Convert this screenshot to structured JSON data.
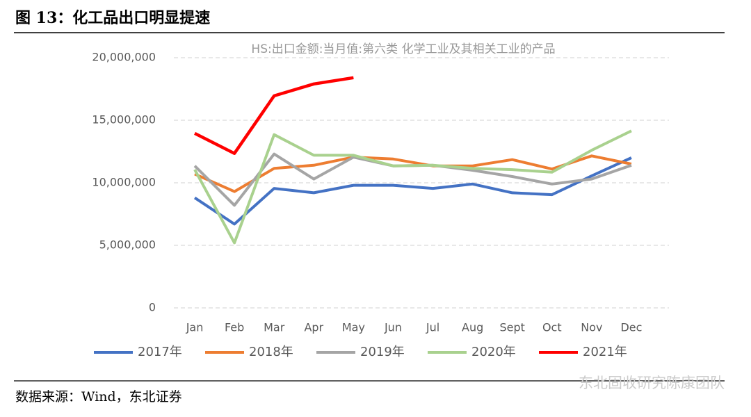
{
  "header": {
    "figure_title": "图 13：化工品出口明显提速"
  },
  "chart_data": {
    "type": "line",
    "title": "HS:出口金额:当月值:第六类 化学工业及其相关工业的产品",
    "categories": [
      "Jan",
      "Feb",
      "Mar",
      "Apr",
      "May",
      "Jun",
      "Jul",
      "Aug",
      "Sept",
      "Oct",
      "Nov",
      "Dec"
    ],
    "series": [
      {
        "name": "2017年",
        "color": "#4472c4",
        "values": [
          8800000,
          6700000,
          9550000,
          9200000,
          9800000,
          9800000,
          9550000,
          9900000,
          9200000,
          9050000,
          10550000,
          12000000
        ]
      },
      {
        "name": "2018年",
        "color": "#ed7d31",
        "values": [
          10700000,
          9300000,
          11150000,
          11400000,
          12050000,
          11900000,
          11350000,
          11350000,
          11850000,
          11100000,
          12150000,
          11500000
        ]
      },
      {
        "name": "2019年",
        "color": "#a5a5a5",
        "values": [
          11350000,
          8200000,
          12300000,
          10300000,
          12050000,
          11350000,
          11400000,
          11000000,
          10500000,
          9900000,
          10300000,
          11400000
        ]
      },
      {
        "name": "2020年",
        "color": "#a9d18e",
        "values": [
          11050000,
          5200000,
          13850000,
          12200000,
          12200000,
          11350000,
          11400000,
          11150000,
          11050000,
          10850000,
          12600000,
          14150000
        ]
      },
      {
        "name": "2021年",
        "color": "#ff0000",
        "values": [
          13950000,
          12350000,
          16950000,
          17900000,
          18400000,
          null,
          null,
          null,
          null,
          null,
          null,
          null
        ]
      }
    ],
    "ylim": [
      0,
      20000000
    ],
    "yticks": [
      {
        "value": 0,
        "label": "0"
      },
      {
        "value": 5000000,
        "label": "5,000,000"
      },
      {
        "value": 10000000,
        "label": "10,000,000"
      },
      {
        "value": 15000000,
        "label": "15,000,000"
      },
      {
        "value": 20000000,
        "label": "20,000,000"
      }
    ],
    "grid": true
  },
  "footer": {
    "source": "数据来源：Wind，东北证券",
    "watermark": "东北固收研究陈康团队"
  }
}
